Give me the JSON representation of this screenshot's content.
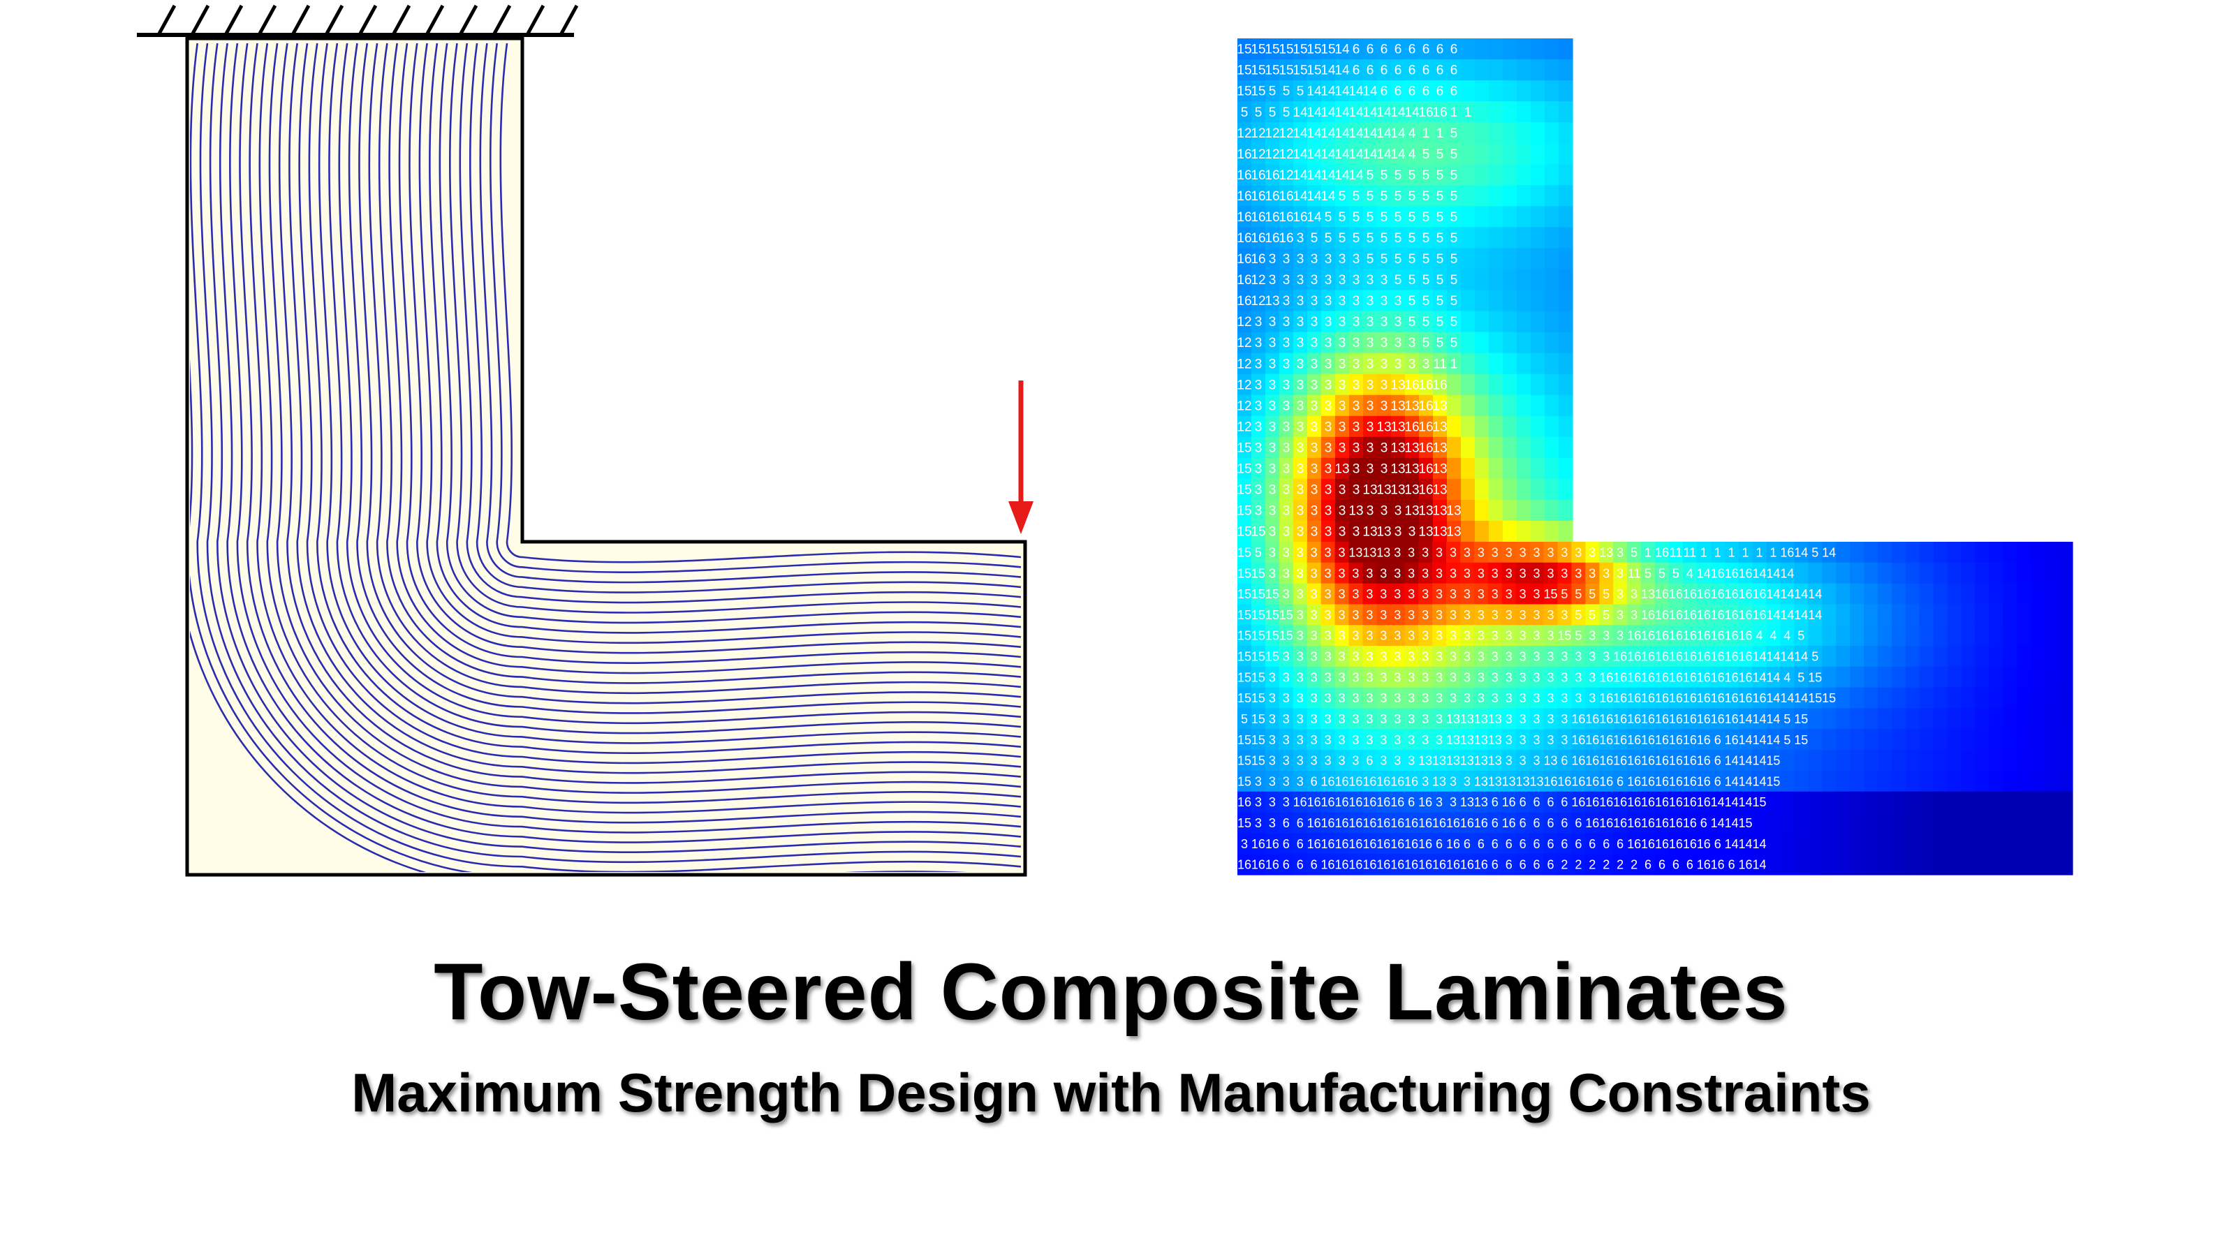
{
  "figure": {
    "title": "Tow-Steered Composite Laminates",
    "subtitle": "Maximum Strength Design with Manufacturing Constraints"
  },
  "colors": {
    "fiber_lines": "#2b2bb0",
    "panel_fill": "#fffde8",
    "outline": "#000000",
    "load_arrow": "#e81b1b",
    "heatmap_colormap": "jet",
    "cell_label_text": "#ffffff"
  },
  "left_panel": {
    "icons": [
      "fixed-support-icon",
      "load-arrow-icon"
    ],
    "fiber_line_count": 34
  },
  "right_panel": {
    "legend": "none",
    "rows_top": [
      "15 15 15 15 15 15 15 14 6 6 6 6 6 6 6 6",
      "15 15 15 15 15 15 14 14 6 6 6 6 6 6 6 6",
      "15 15 5 5 5 14 14 14 14 14 6 6 6 6 6 6",
      "5 5 5 5 14 14 14 14 14 14 14 14 14 16 16 1 1",
      "12 12 12 12 14 14 14 14 14 14 14 14 4 1 1 5",
      "16 12 12 12 14 14 14 14 14 14 14 14 4 5 5 5",
      "16 16 16 12 14 14 14 14 14 5 5 5 5 5 5 5",
      "16 16 16 16 14 14 14 5 5 5 5 5 5 5 5 5",
      "16 16 16 16 16 14 5 5 5 5 5 5 5 5 5 5",
      "16 16 16 16 3 5 5 5 5 5 5 5 5 5 5 5",
      "16 16 3 3 3 3 3 3 3 5 5 5 5 5 5 5",
      "16 12 3 3 3 3 3 3 3 3 3 5 5 5 5 5",
      "16 12 13 3 3 3 3 3 3 3 3 3 5 5 5 5",
      "12 3 3 3 3 3 3 3 3 3 3 3 5 5 5 5",
      "12 3 3 3 3 3 3 3 3 3 3 3 3 5 5 5",
      "12 3 3 3 3 3 3 3 3 3 3 3 3 3 11 1",
      "12 3 3 3 3 3 3 3 3 3 3 13 16 16 16",
      "12 3 3 3 3 3 3 3 3 3 3 13 13 16 13",
      "12 3 3 3 3 3 3 3 3 3 13 13 16 16 13",
      "15 3 3 3 3 3 3 3 3 3 3 13 13 16 13",
      "15 3 3 3 3 3 3 13 3 3 3 13 13 16 13",
      "15 3 3 3 3 3 3 3 3 13 13 13 13 16 13",
      "15 3 3 3 3 3 3 3 13 3 3 3 13 13 13 13",
      "15 15 3 3 3 3 3 3 3 13 13 3 3 13 13 13"
    ],
    "rows_bottom": [
      "15 5 3 3 3 3 3 3 13 13 13 3 3 3 3 3 3 3 3 3 3 3 3 3 3 3 13 3 5 1 16 11 11 1 1 1 1 1 1 16 14 5 14",
      "15 15 3 3 3 3 3 3 3 3 3 3 3 3 3 3 3 3 3 3 3 3 3 3 3 3 3 3 11 5 5 5 4 14 16 16 16 14 14 14",
      "15 15 15 3 3 3 3 3 3 3 3 3 3 3 3 3 3 3 3 3 3 3 15 5 5 5 5 3 3 13 16 16 16 16 16 16 16 16 14 14 14 14",
      "15 15 15 15 3 3 3 3 3 3 3 3 3 3 3 3 3 3 3 3 3 3 3 3 5 5 5 3 3 16 16 16 16 16 16 16 16 16 14 14 14 14",
      "15 15 15 15 3 3 3 3 3 3 3 3 3 3 3 3 3 3 3 3 3 3 3 15 5 3 3 3 16 16 16 16 16 16 16 16 16 4 4 4 5",
      "15 15 15 3 3 3 3 3 3 3 3 3 3 3 3 3 3 3 3 3 3 3 3 3 3 3 3 16 16 16 16 16 16 16 16 16 16 14 14 14 14 5",
      "15 15 3 3 3 3 3 3 3 3 3 3 3 3 3 3 3 3 3 3 3 3 3 3 3 3 16 16 16 16 16 16 16 16 16 16 16 14 14 4 5 15",
      "15 15 3 3 3 3 3 3 3 3 3 3 3 3 3 3 3 3 3 3 3 3 3 3 3 3 16 16 16 16 16 16 16 16 16 16 16 16 14 14 14 15 15",
      "5 15 3 3 3 3 3 3 3 3 3 3 3 3 3 13 13 13 13 3 3 3 3 3 16 16 16 16 16 16 16 16 16 16 16 16 14 14 14 5 15",
      "15 15 3 3 3 3 3 3 3 3 3 3 3 3 3 13 13 13 13 3 3 3 3 3 16 16 16 16 16 16 16 16 16 16 6 16 14 14 14 5 15",
      "15 15 3 3 3 3 3 3 3 6 3 3 3 13 13 13 13 13 13 3 3 3 13 6 16 16 16 16 16 16 16 16 16 16 6 14 14 14 15",
      "15 3 3 3 3 6 16 16 16 16 16 16 16 3 13 3 3 13 13 13 13 13 16 16 16 16 16 6 16 16 16 16 16 16 6 14 14 14 15",
      "16 3 3 3 16 16 16 16 16 16 16 16 6 16 3 3 13 13 6 16 6 6 6 6 16 16 16 16 16 16 16 16 16 16 14 14 14 15",
      "15 3 3 6 6 16 16 16 16 16 16 16 16 16 16 16 16 16 6 16 6 6 6 6 6 16 16 16 16 16 16 16 16 6 14 14 15",
      "3 16 16 6 6 16 16 16 16 16 16 16 16 16 6 16 6 6 6 6 6 6 6 6 6 6 6 6 16 16 16 16 16 16 6 14 14 14",
      "16 16 16 6 6 6 16 16 16 16 16 16 16 16 16 16 16 16 6 6 6 6 6 2 2 2 2 2 2 6 6 6 6 16 16 6 16 14"
    ]
  }
}
